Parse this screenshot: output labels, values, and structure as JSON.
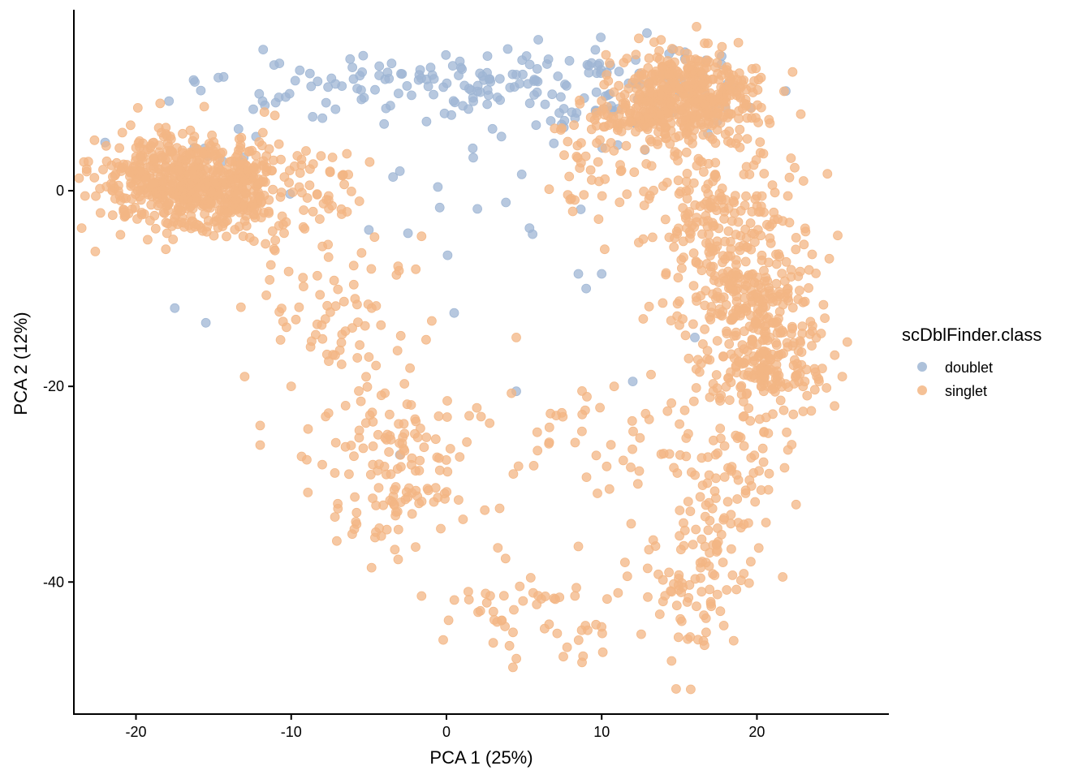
{
  "chart_data": {
    "type": "scatter",
    "title": "",
    "xlabel": "PCA 1 (25%)",
    "ylabel": "PCA 2 (12%)",
    "xlim": [
      -24,
      28.5
    ],
    "ylim": [
      -53.5,
      18.5
    ],
    "x_ticks": [
      -20,
      -10,
      0,
      10,
      20
    ],
    "y_ticks": [
      0,
      -20,
      -40
    ],
    "grid": false,
    "legend": {
      "title": "scDblFinder.class",
      "position": "right",
      "entries": [
        "doublet",
        "singlet"
      ]
    },
    "colors": {
      "doublet": "#9fb6d4",
      "singlet": "#f3b684"
    },
    "series": [
      {
        "name": "doublet",
        "color": "#9fb6d4",
        "clusters": [
          {
            "cx": 1.0,
            "cy": 10.5,
            "sx": 8.0,
            "sy": 2.0,
            "n": 150
          },
          {
            "cx": 10.0,
            "cy": 9.0,
            "sx": 2.5,
            "sy": 2.5,
            "n": 45
          },
          {
            "cx": 15.5,
            "cy": 10.5,
            "sx": 1.5,
            "sy": 2.5,
            "n": 25
          },
          {
            "cx": -14.0,
            "cy": 2.0,
            "sx": 2.0,
            "sy": 2.0,
            "n": 10
          },
          {
            "cx": 3.0,
            "cy": -2.0,
            "sx": 4.0,
            "sy": 4.0,
            "n": 15
          }
        ],
        "points": [
          [
            -17.5,
            -12
          ],
          [
            -15.5,
            -13.5
          ],
          [
            -11,
            9
          ],
          [
            -5,
            -4
          ],
          [
            -3,
            2
          ],
          [
            0.5,
            -12.5
          ],
          [
            4.5,
            -20.5
          ],
          [
            8.5,
            -8.5
          ],
          [
            9,
            -10
          ],
          [
            10,
            -8.5
          ],
          [
            12,
            -19.5
          ],
          [
            16,
            -15
          ],
          [
            -3,
            -27
          ]
        ]
      },
      {
        "name": "singlet",
        "color": "#f3b684",
        "clusters": [
          {
            "cx": -17.5,
            "cy": 1.0,
            "sx": 2.6,
            "sy": 2.4,
            "n": 480
          },
          {
            "cx": -13.5,
            "cy": 0.0,
            "sx": 1.8,
            "sy": 2.4,
            "n": 200
          },
          {
            "cx": 15.5,
            "cy": 10.0,
            "sx": 2.2,
            "sy": 2.4,
            "n": 450
          },
          {
            "cx": 12.0,
            "cy": 7.0,
            "sx": 2.2,
            "sy": 1.8,
            "n": 80
          },
          {
            "cx": 17.5,
            "cy": -2.0,
            "sx": 2.5,
            "sy": 3.5,
            "n": 160
          },
          {
            "cx": 19.5,
            "cy": -11.0,
            "sx": 2.3,
            "sy": 3.5,
            "n": 250
          },
          {
            "cx": 20.5,
            "cy": -18.0,
            "sx": 1.6,
            "sy": 2.5,
            "n": 150
          },
          {
            "cx": 17.5,
            "cy": -30.0,
            "sx": 2.5,
            "sy": 5.0,
            "n": 120
          },
          {
            "cx": 16.0,
            "cy": -42.0,
            "sx": 1.5,
            "sy": 3.5,
            "n": 60
          },
          {
            "cx": -3.0,
            "cy": -28.0,
            "sx": 2.5,
            "sy": 4.5,
            "n": 140
          },
          {
            "cx": -7.0,
            "cy": -12.0,
            "sx": 3.0,
            "sy": 4.0,
            "n": 70
          },
          {
            "cx": 6.0,
            "cy": -43.0,
            "sx": 3.5,
            "sy": 2.5,
            "n": 60
          },
          {
            "cx": 10.5,
            "cy": 2.0,
            "sx": 2.0,
            "sy": 3.0,
            "n": 40
          },
          {
            "cx": -8.5,
            "cy": 0.5,
            "sx": 2.0,
            "sy": 2.0,
            "n": 40
          },
          {
            "cx": 7.5,
            "cy": -25.0,
            "sx": 2.5,
            "sy": 3.0,
            "n": 30
          }
        ],
        "points": [
          [
            -21.5,
            0
          ],
          [
            -21.5,
            -2.5
          ],
          [
            -21,
            -4.5
          ],
          [
            -13,
            -19
          ],
          [
            -12,
            -24
          ],
          [
            -12,
            -26
          ],
          [
            -10,
            -20
          ],
          [
            -9,
            -27.5
          ],
          [
            -8,
            -28
          ],
          [
            22,
            -26.5
          ],
          [
            23.5,
            -22.5
          ],
          [
            24,
            -19.5
          ],
          [
            25,
            -22
          ],
          [
            25.5,
            -19
          ],
          [
            23,
            1
          ],
          [
            22.5,
            -6
          ],
          [
            22,
            -10
          ],
          [
            18.5,
            -46
          ],
          [
            14.5,
            -41
          ],
          [
            11.5,
            -38
          ],
          [
            10.5,
            -30.5
          ],
          [
            4.5,
            -15
          ],
          [
            -5,
            -17
          ],
          [
            -7,
            -32
          ]
        ]
      }
    ]
  }
}
